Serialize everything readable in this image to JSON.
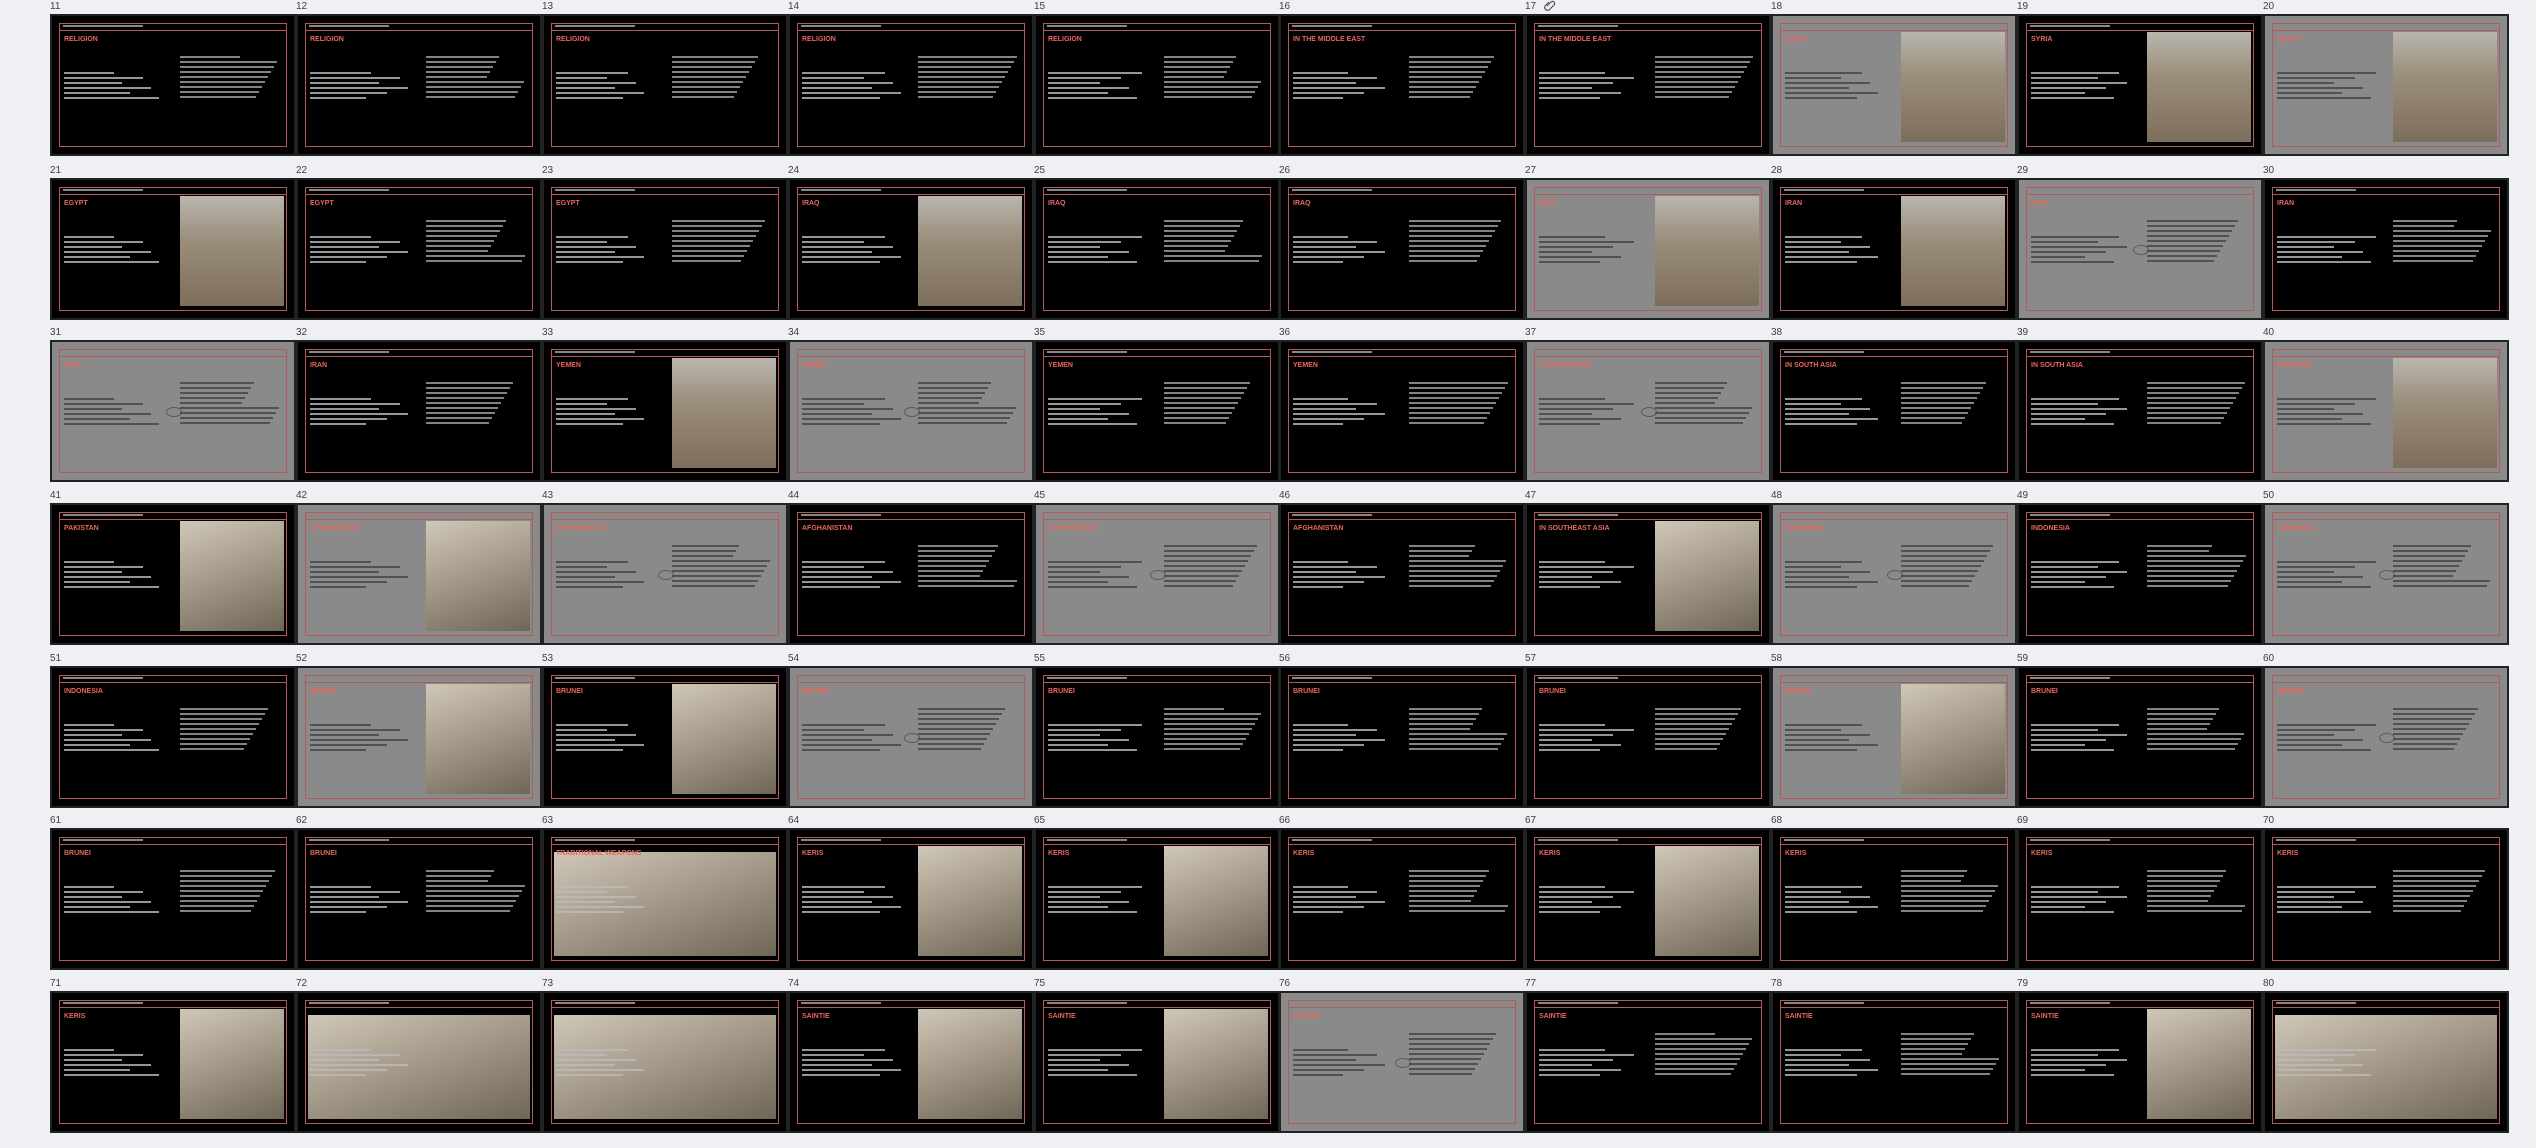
{
  "colors": {
    "page_background": "#eef0f3",
    "slide_black": "#000000",
    "slide_gray": "#8a8a8a",
    "accent_title": "#e9675f",
    "frame_line": "#b45a5a"
  },
  "icons": {
    "attachment": "paperclip-icon"
  },
  "rows": [
    {
      "slides": [
        {
          "n": "11",
          "title": "RELIGION",
          "style": "black",
          "photo": false
        },
        {
          "n": "12",
          "title": "RELIGION",
          "style": "black",
          "photo": false
        },
        {
          "n": "13",
          "title": "RELIGION",
          "style": "black",
          "photo": false
        },
        {
          "n": "14",
          "title": "RELIGION",
          "style": "black",
          "photo": false
        },
        {
          "n": "15",
          "title": "RELIGION",
          "style": "black",
          "photo": false
        },
        {
          "n": "16",
          "title": "IN THE MIDDLE EAST",
          "style": "black",
          "photo": false
        },
        {
          "n": "17",
          "title": "IN THE MIDDLE EAST",
          "style": "black",
          "photo": false,
          "attachment": true
        },
        {
          "n": "18",
          "title": "SYRIA",
          "style": "gray",
          "photo": true
        },
        {
          "n": "19",
          "title": "SYRIA",
          "style": "black",
          "photo": true
        },
        {
          "n": "20",
          "title": "EGYPT",
          "style": "gray",
          "photo": true
        }
      ]
    },
    {
      "slides": [
        {
          "n": "21",
          "title": "EGYPT",
          "style": "black",
          "photo": true
        },
        {
          "n": "22",
          "title": "EGYPT",
          "style": "black",
          "photo": false
        },
        {
          "n": "23",
          "title": "EGYPT",
          "style": "black",
          "photo": false
        },
        {
          "n": "24",
          "title": "IRAQ",
          "style": "black",
          "photo": true
        },
        {
          "n": "25",
          "title": "IRAQ",
          "style": "black",
          "photo": false
        },
        {
          "n": "26",
          "title": "IRAQ",
          "style": "black",
          "photo": false
        },
        {
          "n": "27",
          "title": "IRAN",
          "style": "gray",
          "photo": true
        },
        {
          "n": "28",
          "title": "IRAN",
          "style": "black",
          "photo": true
        },
        {
          "n": "29",
          "title": "IRAN",
          "style": "gray",
          "photo": false
        },
        {
          "n": "30",
          "title": "IRAN",
          "style": "black",
          "photo": false
        }
      ]
    },
    {
      "slides": [
        {
          "n": "31",
          "title": "IRAN",
          "style": "gray",
          "photo": false
        },
        {
          "n": "32",
          "title": "IRAN",
          "style": "black",
          "photo": false
        },
        {
          "n": "33",
          "title": "YEMEN",
          "style": "black",
          "photo": true
        },
        {
          "n": "34",
          "title": "YEMEN",
          "style": "gray",
          "photo": false
        },
        {
          "n": "35",
          "title": "YEMEN",
          "style": "black",
          "photo": false
        },
        {
          "n": "36",
          "title": "YEMEN",
          "style": "black",
          "photo": false
        },
        {
          "n": "37",
          "title": "IN SOUTH ASIA",
          "style": "gray",
          "photo": false
        },
        {
          "n": "38",
          "title": "IN SOUTH ASIA",
          "style": "black",
          "photo": false
        },
        {
          "n": "39",
          "title": "IN SOUTH ASIA",
          "style": "black",
          "photo": false
        },
        {
          "n": "40",
          "title": "PAKISTAN",
          "style": "gray",
          "photo": true
        }
      ]
    },
    {
      "slides": [
        {
          "n": "41",
          "title": "PAKISTAN",
          "style": "black",
          "photo": true
        },
        {
          "n": "42",
          "title": "AFGHANISTAN",
          "style": "gray",
          "photo": true
        },
        {
          "n": "43",
          "title": "AFGHANISTAN",
          "style": "gray",
          "photo": false
        },
        {
          "n": "44",
          "title": "AFGHANISTAN",
          "style": "black",
          "photo": false
        },
        {
          "n": "45",
          "title": "AFGHANISTAN",
          "style": "gray",
          "photo": false
        },
        {
          "n": "46",
          "title": "AFGHANISTAN",
          "style": "black",
          "photo": false
        },
        {
          "n": "47",
          "title": "IN SOUTHEAST ASIA",
          "style": "black",
          "photo": true
        },
        {
          "n": "48",
          "title": "INDONESIA",
          "style": "gray",
          "photo": false
        },
        {
          "n": "49",
          "title": "INDONESIA",
          "style": "black",
          "photo": false
        },
        {
          "n": "50",
          "title": "INDONESIA",
          "style": "gray",
          "photo": false
        }
      ]
    },
    {
      "slides": [
        {
          "n": "51",
          "title": "INDONESIA",
          "style": "black",
          "photo": false
        },
        {
          "n": "52",
          "title": "BRUNEI",
          "style": "gray",
          "photo": true
        },
        {
          "n": "53",
          "title": "BRUNEI",
          "style": "black",
          "photo": true
        },
        {
          "n": "54",
          "title": "BRUNEI",
          "style": "gray",
          "photo": false
        },
        {
          "n": "55",
          "title": "BRUNEI",
          "style": "black",
          "photo": false
        },
        {
          "n": "56",
          "title": "BRUNEI",
          "style": "black",
          "photo": false
        },
        {
          "n": "57",
          "title": "BRUNEI",
          "style": "black",
          "photo": false
        },
        {
          "n": "58",
          "title": "BRUNEI",
          "style": "gray",
          "photo": true
        },
        {
          "n": "59",
          "title": "BRUNEI",
          "style": "black",
          "photo": false
        },
        {
          "n": "60",
          "title": "BRUNEI",
          "style": "gray",
          "photo": false
        }
      ]
    },
    {
      "slides": [
        {
          "n": "61",
          "title": "BRUNEI",
          "style": "black",
          "photo": false
        },
        {
          "n": "62",
          "title": "BRUNEI",
          "style": "black",
          "photo": false
        },
        {
          "n": "63",
          "title": "TRADITIONAL WEAPONS",
          "style": "black",
          "photo": true
        },
        {
          "n": "64",
          "title": "KERIS",
          "style": "black",
          "photo": true
        },
        {
          "n": "65",
          "title": "KERIS",
          "style": "black",
          "photo": true
        },
        {
          "n": "66",
          "title": "KERIS",
          "style": "black",
          "photo": false
        },
        {
          "n": "67",
          "title": "KERIS",
          "style": "black",
          "photo": true
        },
        {
          "n": "68",
          "title": "KERIS",
          "style": "black",
          "photo": false
        },
        {
          "n": "69",
          "title": "KERIS",
          "style": "black",
          "photo": false
        },
        {
          "n": "70",
          "title": "KERIS",
          "style": "black",
          "photo": false
        }
      ]
    },
    {
      "slides": [
        {
          "n": "71",
          "title": "KERIS",
          "style": "black",
          "photo": true
        },
        {
          "n": "72",
          "title": "",
          "style": "black",
          "photo": true
        },
        {
          "n": "73",
          "title": "",
          "style": "black",
          "photo": true
        },
        {
          "n": "74",
          "title": "SAINTIE",
          "style": "black",
          "photo": true
        },
        {
          "n": "75",
          "title": "SAINTIE",
          "style": "black",
          "photo": true
        },
        {
          "n": "76",
          "title": "SAINTIE",
          "style": "gray",
          "photo": false
        },
        {
          "n": "77",
          "title": "SAINTIE",
          "style": "black",
          "photo": false
        },
        {
          "n": "78",
          "title": "SAINTIE",
          "style": "black",
          "photo": false
        },
        {
          "n": "79",
          "title": "SAINTIE",
          "style": "black",
          "photo": true
        },
        {
          "n": "80",
          "title": "",
          "style": "black",
          "photo": true
        }
      ]
    }
  ]
}
